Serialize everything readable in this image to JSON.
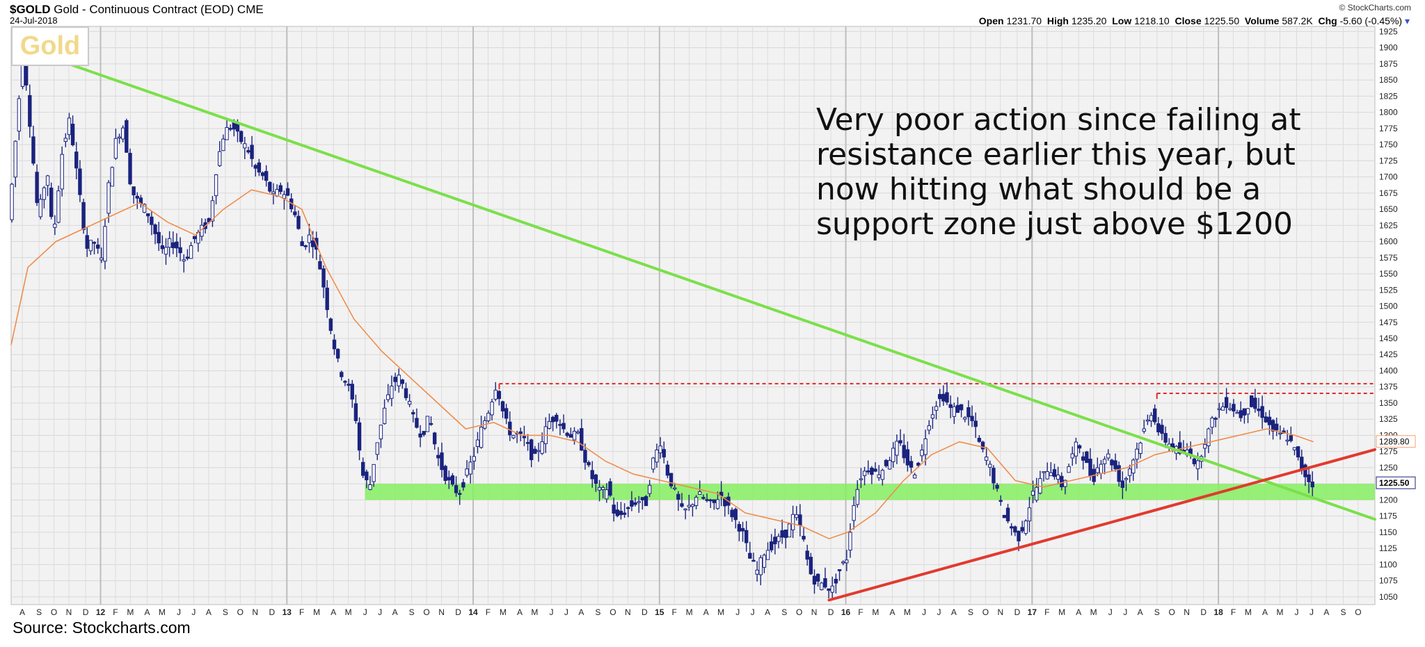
{
  "header": {
    "symbol": "$GOLD",
    "name": "Gold - Continuous Contract (EOD)",
    "exchange": "CME",
    "date": "24-Jul-2018",
    "credit": "© StockCharts.com",
    "open_label": "Open",
    "open": "1231.70",
    "high_label": "High",
    "high": "1235.20",
    "low_label": "Low",
    "low": "1218.10",
    "close_label": "Close",
    "close": "1225.50",
    "volume_label": "Volume",
    "volume": "587.2K",
    "chg_label": "Chg",
    "chg": "-5.60 (-0.45%)"
  },
  "badge_text": "Gold",
  "annotation": "Very poor action since failing at resistance earlier this year, but now hitting what should be a support zone just above $1200",
  "source": "Source: Stockcharts.com",
  "colors": {
    "candles": "#1a237e",
    "moving_average": "#f08c4a",
    "downtrend_line": "#7be04a",
    "uptrend_line": "#e23a2e",
    "support_zone": "#86ef60",
    "resistance_dashed": "#dd2a2a",
    "price_box_ma": "#f5a06c"
  },
  "chart_data": {
    "type": "ohlc",
    "y_axis": {
      "min": 1038,
      "max": 1933,
      "ticks": [
        1050,
        1075,
        1100,
        1125,
        1150,
        1175,
        1200,
        1225,
        1250,
        1275,
        1300,
        1325,
        1350,
        1375,
        1400,
        1425,
        1450,
        1475,
        1500,
        1525,
        1550,
        1575,
        1600,
        1625,
        1650,
        1675,
        1700,
        1725,
        1750,
        1775,
        1800,
        1825,
        1850,
        1875,
        1900,
        1925
      ],
      "side": "right",
      "grid": true
    },
    "x_axis": {
      "start": 2011.56,
      "end": 2018.88,
      "ticks": [
        {
          "t": 2011.62,
          "label": "A"
        },
        {
          "t": 2011.71,
          "label": "S"
        },
        {
          "t": 2011.79,
          "label": "O"
        },
        {
          "t": 2011.87,
          "label": "N"
        },
        {
          "t": 2011.96,
          "label": "D"
        },
        {
          "t": 2012.04,
          "label": "12",
          "bold": true
        },
        {
          "t": 2012.12,
          "label": "F"
        },
        {
          "t": 2012.2,
          "label": "M"
        },
        {
          "t": 2012.29,
          "label": "A"
        },
        {
          "t": 2012.37,
          "label": "M"
        },
        {
          "t": 2012.46,
          "label": "J"
        },
        {
          "t": 2012.54,
          "label": "J"
        },
        {
          "t": 2012.62,
          "label": "A"
        },
        {
          "t": 2012.71,
          "label": "S"
        },
        {
          "t": 2012.79,
          "label": "O"
        },
        {
          "t": 2012.87,
          "label": "N"
        },
        {
          "t": 2012.96,
          "label": "D"
        },
        {
          "t": 2013.04,
          "label": "13",
          "bold": true
        },
        {
          "t": 2013.12,
          "label": "F"
        },
        {
          "t": 2013.2,
          "label": "M"
        },
        {
          "t": 2013.29,
          "label": "A"
        },
        {
          "t": 2013.37,
          "label": "M"
        },
        {
          "t": 2013.46,
          "label": "J"
        },
        {
          "t": 2013.54,
          "label": "J"
        },
        {
          "t": 2013.62,
          "label": "A"
        },
        {
          "t": 2013.71,
          "label": "S"
        },
        {
          "t": 2013.79,
          "label": "O"
        },
        {
          "t": 2013.87,
          "label": "N"
        },
        {
          "t": 2013.96,
          "label": "D"
        },
        {
          "t": 2014.04,
          "label": "14",
          "bold": true
        },
        {
          "t": 2014.12,
          "label": "F"
        },
        {
          "t": 2014.2,
          "label": "M"
        },
        {
          "t": 2014.29,
          "label": "A"
        },
        {
          "t": 2014.37,
          "label": "M"
        },
        {
          "t": 2014.46,
          "label": "J"
        },
        {
          "t": 2014.54,
          "label": "J"
        },
        {
          "t": 2014.62,
          "label": "A"
        },
        {
          "t": 2014.71,
          "label": "S"
        },
        {
          "t": 2014.79,
          "label": "O"
        },
        {
          "t": 2014.87,
          "label": "N"
        },
        {
          "t": 2014.96,
          "label": "D"
        },
        {
          "t": 2015.04,
          "label": "15",
          "bold": true
        },
        {
          "t": 2015.12,
          "label": "F"
        },
        {
          "t": 2015.2,
          "label": "M"
        },
        {
          "t": 2015.29,
          "label": "A"
        },
        {
          "t": 2015.37,
          "label": "M"
        },
        {
          "t": 2015.46,
          "label": "J"
        },
        {
          "t": 2015.54,
          "label": "J"
        },
        {
          "t": 2015.62,
          "label": "A"
        },
        {
          "t": 2015.71,
          "label": "S"
        },
        {
          "t": 2015.79,
          "label": "O"
        },
        {
          "t": 2015.87,
          "label": "N"
        },
        {
          "t": 2015.96,
          "label": "D"
        },
        {
          "t": 2016.04,
          "label": "16",
          "bold": true
        },
        {
          "t": 2016.12,
          "label": "F"
        },
        {
          "t": 2016.2,
          "label": "M"
        },
        {
          "t": 2016.29,
          "label": "A"
        },
        {
          "t": 2016.37,
          "label": "M"
        },
        {
          "t": 2016.46,
          "label": "J"
        },
        {
          "t": 2016.54,
          "label": "J"
        },
        {
          "t": 2016.62,
          "label": "A"
        },
        {
          "t": 2016.71,
          "label": "S"
        },
        {
          "t": 2016.79,
          "label": "O"
        },
        {
          "t": 2016.87,
          "label": "N"
        },
        {
          "t": 2016.96,
          "label": "D"
        },
        {
          "t": 2017.04,
          "label": "17",
          "bold": true
        },
        {
          "t": 2017.12,
          "label": "F"
        },
        {
          "t": 2017.2,
          "label": "M"
        },
        {
          "t": 2017.29,
          "label": "A"
        },
        {
          "t": 2017.37,
          "label": "M"
        },
        {
          "t": 2017.46,
          "label": "J"
        },
        {
          "t": 2017.54,
          "label": "J"
        },
        {
          "t": 2017.62,
          "label": "A"
        },
        {
          "t": 2017.71,
          "label": "S"
        },
        {
          "t": 2017.79,
          "label": "O"
        },
        {
          "t": 2017.87,
          "label": "N"
        },
        {
          "t": 2017.96,
          "label": "D"
        },
        {
          "t": 2018.04,
          "label": "18",
          "bold": true
        },
        {
          "t": 2018.12,
          "label": "F"
        },
        {
          "t": 2018.2,
          "label": "M"
        },
        {
          "t": 2018.29,
          "label": "A"
        },
        {
          "t": 2018.37,
          "label": "M"
        },
        {
          "t": 2018.46,
          "label": "J"
        },
        {
          "t": 2018.54,
          "label": "J"
        },
        {
          "t": 2018.62,
          "label": "A"
        },
        {
          "t": 2018.71,
          "label": "S"
        },
        {
          "t": 2018.79,
          "label": "O"
        }
      ]
    },
    "price_path": [
      [
        2011.56,
        1620
      ],
      [
        2011.6,
        1760
      ],
      [
        2011.64,
        1900
      ],
      [
        2011.68,
        1770
      ],
      [
        2011.72,
        1640
      ],
      [
        2011.77,
        1710
      ],
      [
        2011.8,
        1600
      ],
      [
        2011.85,
        1740
      ],
      [
        2011.89,
        1790
      ],
      [
        2011.93,
        1700
      ],
      [
        2011.98,
        1590
      ],
      [
        2012.02,
        1600
      ],
      [
        2012.06,
        1570
      ],
      [
        2012.1,
        1690
      ],
      [
        2012.14,
        1760
      ],
      [
        2012.18,
        1780
      ],
      [
        2012.22,
        1680
      ],
      [
        2012.26,
        1660
      ],
      [
        2012.3,
        1650
      ],
      [
        2012.34,
        1620
      ],
      [
        2012.39,
        1580
      ],
      [
        2012.43,
        1600
      ],
      [
        2012.47,
        1590
      ],
      [
        2012.51,
        1570
      ],
      [
        2012.55,
        1600
      ],
      [
        2012.6,
        1620
      ],
      [
        2012.64,
        1630
      ],
      [
        2012.68,
        1720
      ],
      [
        2012.72,
        1770
      ],
      [
        2012.76,
        1780
      ],
      [
        2012.8,
        1760
      ],
      [
        2012.85,
        1740
      ],
      [
        2012.89,
        1710
      ],
      [
        2012.93,
        1700
      ],
      [
        2012.98,
        1670
      ],
      [
        2013.02,
        1680
      ],
      [
        2013.06,
        1670
      ],
      [
        2013.1,
        1640
      ],
      [
        2013.14,
        1590
      ],
      [
        2013.18,
        1610
      ],
      [
        2013.22,
        1580
      ],
      [
        2013.26,
        1520
      ],
      [
        2013.3,
        1450
      ],
      [
        2013.34,
        1400
      ],
      [
        2013.38,
        1380
      ],
      [
        2013.42,
        1340
      ],
      [
        2013.46,
        1240
      ],
      [
        2013.5,
        1220
      ],
      [
        2013.54,
        1290
      ],
      [
        2013.58,
        1340
      ],
      [
        2013.62,
        1380
      ],
      [
        2013.66,
        1390
      ],
      [
        2013.7,
        1360
      ],
      [
        2013.74,
        1320
      ],
      [
        2013.78,
        1300
      ],
      [
        2013.82,
        1330
      ],
      [
        2013.86,
        1270
      ],
      [
        2013.9,
        1240
      ],
      [
        2013.94,
        1220
      ],
      [
        2013.98,
        1210
      ],
      [
        2014.02,
        1240
      ],
      [
        2014.06,
        1270
      ],
      [
        2014.1,
        1310
      ],
      [
        2014.14,
        1340
      ],
      [
        2014.18,
        1380
      ],
      [
        2014.22,
        1330
      ],
      [
        2014.26,
        1300
      ],
      [
        2014.3,
        1300
      ],
      [
        2014.34,
        1290
      ],
      [
        2014.38,
        1260
      ],
      [
        2014.42,
        1290
      ],
      [
        2014.46,
        1320
      ],
      [
        2014.5,
        1330
      ],
      [
        2014.54,
        1310
      ],
      [
        2014.58,
        1300
      ],
      [
        2014.62,
        1300
      ],
      [
        2014.66,
        1260
      ],
      [
        2014.7,
        1230
      ],
      [
        2014.74,
        1210
      ],
      [
        2014.78,
        1220
      ],
      [
        2014.82,
        1170
      ],
      [
        2014.86,
        1180
      ],
      [
        2014.9,
        1190
      ],
      [
        2014.94,
        1200
      ],
      [
        2014.98,
        1190
      ],
      [
        2015.02,
        1260
      ],
      [
        2015.06,
        1290
      ],
      [
        2015.1,
        1240
      ],
      [
        2015.14,
        1210
      ],
      [
        2015.18,
        1180
      ],
      [
        2015.22,
        1190
      ],
      [
        2015.26,
        1210
      ],
      [
        2015.3,
        1200
      ],
      [
        2015.34,
        1190
      ],
      [
        2015.38,
        1210
      ],
      [
        2015.42,
        1190
      ],
      [
        2015.46,
        1170
      ],
      [
        2015.5,
        1150
      ],
      [
        2015.54,
        1110
      ],
      [
        2015.58,
        1090
      ],
      [
        2015.62,
        1120
      ],
      [
        2015.66,
        1130
      ],
      [
        2015.7,
        1140
      ],
      [
        2015.74,
        1150
      ],
      [
        2015.78,
        1180
      ],
      [
        2015.82,
        1150
      ],
      [
        2015.86,
        1090
      ],
      [
        2015.9,
        1070
      ],
      [
        2015.94,
        1070
      ],
      [
        2015.98,
        1060
      ],
      [
        2016.02,
        1090
      ],
      [
        2016.06,
        1110
      ],
      [
        2016.1,
        1200
      ],
      [
        2016.14,
        1240
      ],
      [
        2016.18,
        1250
      ],
      [
        2016.22,
        1240
      ],
      [
        2016.26,
        1250
      ],
      [
        2016.3,
        1270
      ],
      [
        2016.34,
        1290
      ],
      [
        2016.38,
        1260
      ],
      [
        2016.42,
        1240
      ],
      [
        2016.46,
        1270
      ],
      [
        2016.5,
        1320
      ],
      [
        2016.54,
        1350
      ],
      [
        2016.58,
        1360
      ],
      [
        2016.62,
        1340
      ],
      [
        2016.66,
        1340
      ],
      [
        2016.7,
        1330
      ],
      [
        2016.74,
        1320
      ],
      [
        2016.78,
        1280
      ],
      [
        2016.82,
        1260
      ],
      [
        2016.86,
        1220
      ],
      [
        2016.9,
        1180
      ],
      [
        2016.94,
        1160
      ],
      [
        2016.98,
        1140
      ],
      [
        2017.02,
        1170
      ],
      [
        2017.06,
        1210
      ],
      [
        2017.1,
        1230
      ],
      [
        2017.14,
        1250
      ],
      [
        2017.18,
        1240
      ],
      [
        2017.22,
        1220
      ],
      [
        2017.26,
        1260
      ],
      [
        2017.3,
        1290
      ],
      [
        2017.34,
        1260
      ],
      [
        2017.38,
        1230
      ],
      [
        2017.42,
        1260
      ],
      [
        2017.46,
        1270
      ],
      [
        2017.5,
        1250
      ],
      [
        2017.54,
        1220
      ],
      [
        2017.58,
        1250
      ],
      [
        2017.62,
        1280
      ],
      [
        2017.66,
        1310
      ],
      [
        2017.7,
        1340
      ],
      [
        2017.74,
        1300
      ],
      [
        2017.78,
        1290
      ],
      [
        2017.82,
        1280
      ],
      [
        2017.86,
        1270
      ],
      [
        2017.9,
        1280
      ],
      [
        2017.94,
        1250
      ],
      [
        2017.98,
        1290
      ],
      [
        2018.02,
        1320
      ],
      [
        2018.06,
        1340
      ],
      [
        2018.1,
        1350
      ],
      [
        2018.14,
        1340
      ],
      [
        2018.18,
        1330
      ],
      [
        2018.22,
        1350
      ],
      [
        2018.26,
        1340
      ],
      [
        2018.3,
        1330
      ],
      [
        2018.34,
        1310
      ],
      [
        2018.38,
        1300
      ],
      [
        2018.42,
        1300
      ],
      [
        2018.46,
        1280
      ],
      [
        2018.5,
        1250
      ],
      [
        2018.52,
        1240
      ],
      [
        2018.55,
        1226
      ]
    ],
    "moving_average": [
      [
        2011.56,
        1440
      ],
      [
        2011.65,
        1560
      ],
      [
        2011.8,
        1600
      ],
      [
        2011.95,
        1620
      ],
      [
        2012.1,
        1640
      ],
      [
        2012.25,
        1660
      ],
      [
        2012.4,
        1630
      ],
      [
        2012.55,
        1610
      ],
      [
        2012.7,
        1650
      ],
      [
        2012.85,
        1680
      ],
      [
        2013.0,
        1670
      ],
      [
        2013.12,
        1650
      ],
      [
        2013.25,
        1560
      ],
      [
        2013.4,
        1480
      ],
      [
        2013.55,
        1430
      ],
      [
        2013.7,
        1390
      ],
      [
        2013.85,
        1350
      ],
      [
        2014.0,
        1310
      ],
      [
        2014.15,
        1320
      ],
      [
        2014.3,
        1300
      ],
      [
        2014.45,
        1300
      ],
      [
        2014.6,
        1290
      ],
      [
        2014.75,
        1260
      ],
      [
        2014.9,
        1240
      ],
      [
        2015.05,
        1230
      ],
      [
        2015.2,
        1220
      ],
      [
        2015.35,
        1210
      ],
      [
        2015.5,
        1180
      ],
      [
        2015.65,
        1170
      ],
      [
        2015.8,
        1160
      ],
      [
        2015.95,
        1140
      ],
      [
        2016.05,
        1150
      ],
      [
        2016.2,
        1180
      ],
      [
        2016.35,
        1230
      ],
      [
        2016.5,
        1270
      ],
      [
        2016.65,
        1290
      ],
      [
        2016.8,
        1280
      ],
      [
        2016.95,
        1230
      ],
      [
        2017.1,
        1220
      ],
      [
        2017.25,
        1230
      ],
      [
        2017.4,
        1240
      ],
      [
        2017.55,
        1250
      ],
      [
        2017.7,
        1270
      ],
      [
        2017.85,
        1280
      ],
      [
        2018.0,
        1290
      ],
      [
        2018.15,
        1300
      ],
      [
        2018.3,
        1310
      ],
      [
        2018.45,
        1300
      ],
      [
        2018.55,
        1290
      ]
    ],
    "ma_last_label": "1289.80",
    "close_label": "1225.50",
    "support_zone": {
      "low": 1200,
      "high": 1225,
      "from": 2013.46
    },
    "resistance_lines": [
      {
        "price": 1380,
        "from": 2014.18,
        "to": 2018.88
      },
      {
        "price": 1365,
        "from": 2017.71,
        "to": 2018.88
      }
    ],
    "downtrend_line": {
      "x1": 2011.62,
      "y1": 1900,
      "x2": 2018.88,
      "y2": 1170
    },
    "uptrend_line": {
      "x1": 2015.95,
      "y1": 1045,
      "x2": 2018.88,
      "y2": 1278
    }
  }
}
